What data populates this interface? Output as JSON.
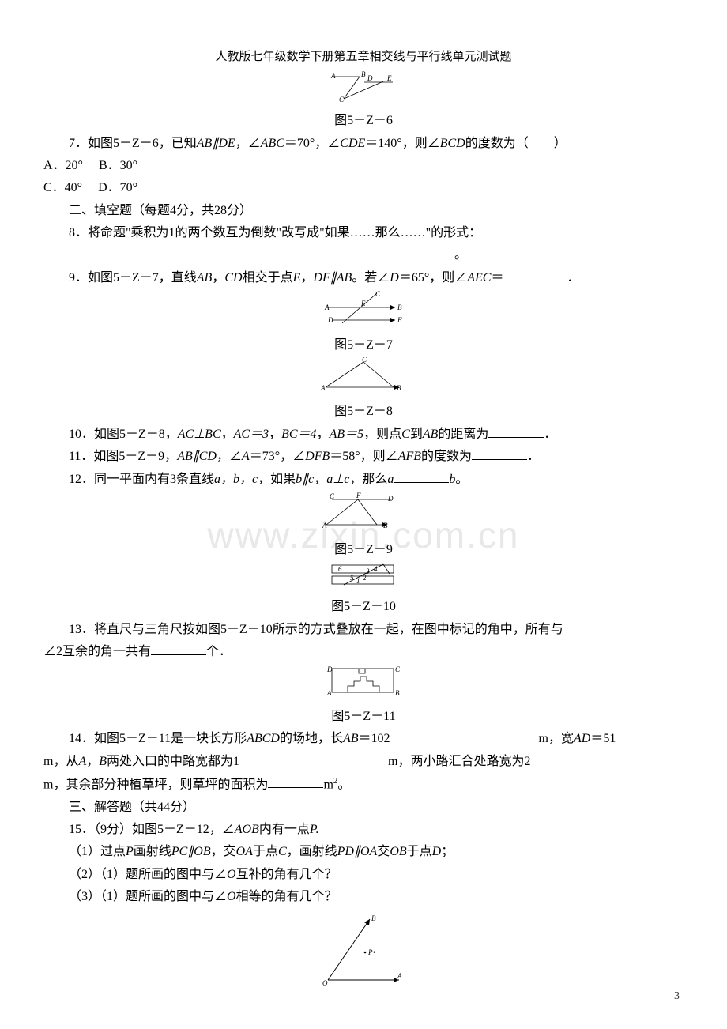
{
  "header": "人教版七年级数学下册第五章相交线与平行线单元测试题",
  "watermark": "www.zixin.com.cn",
  "fig6": {
    "label": "图5－Z－6",
    "pts": {
      "A": "A",
      "B": "B",
      "C": "C",
      "D": "D",
      "E": "E"
    }
  },
  "q7": {
    "text_a": "7．如图5－Z－6，已知",
    "abde": "AB∥DE",
    "text_b": "，∠",
    "abc": "ABC",
    "text_c": "＝70°，∠",
    "cde": "CDE",
    "text_d": "＝140°，则∠",
    "bcd": "BCD",
    "text_e": "的度数为（　　）",
    "A": "A．20°",
    "B": "B．30°",
    "C": "C．40°",
    "D": "D．70°"
  },
  "sec2": "二、填空题（每题4分，共28分）",
  "q8": {
    "text": "8．将命题\"乘积为1的两个数互为倒数\"改写成\"如果……那么……\"的形式："
  },
  "q9": {
    "a": "9．如图5－Z－7，直线",
    "ab": "AB",
    "b": "，",
    "cd": "CD",
    "c": "相交于点",
    "e": "E",
    "d": "，",
    "df": "DF∥AB",
    "f": "。若∠",
    "dlab": "D",
    "g": "＝65°，则∠",
    "aec": "AEC",
    "h": "＝",
    "tail": "．"
  },
  "fig7": {
    "label": "图5－Z－7",
    "pts": {
      "A": "A",
      "B": "B",
      "C": "C",
      "D": "D",
      "E": "E",
      "F": "F"
    }
  },
  "fig8": {
    "label": "图5－Z－8",
    "pts": {
      "A": "A",
      "B": "B",
      "C": "C"
    }
  },
  "q10": {
    "a": "10．如图5－Z－8，",
    "ac": "AC⊥BC",
    "b": "，",
    "ac3": "AC＝3",
    "c": "，",
    "bc4": "BC＝4",
    "d": "，",
    "ab5": "AB＝5",
    "e": "，则点",
    "cpt": "C",
    "f": "到",
    "ab": "AB",
    "g": "的距离为",
    "tail": "．"
  },
  "q11": {
    "a": "11．如图5－Z－9，",
    "abcd": "AB∥CD",
    "b": "，∠",
    "Alab": "A",
    "c": "＝73°，∠",
    "dfb": "DFB",
    "d": "＝58°，则∠",
    "afb": "AFB",
    "e": "的度数为",
    "tail": "．"
  },
  "q12": {
    "a": "12．同一平面内有3条直线",
    "abc": "a，b，c",
    "b": "，如果",
    "bc": "b∥c",
    "c": "，",
    "ac": "a⊥c",
    "d": "，那么",
    "alab": "a",
    "blab": "b",
    "tail": "。"
  },
  "fig9": {
    "label": "图5－Z－9",
    "pts": {
      "A": "A",
      "B": "B",
      "C": "C",
      "D": "D",
      "F": "F"
    }
  },
  "fig10": {
    "label": "图5－Z－10",
    "nums": {
      "n1": "1",
      "n2": "2",
      "n3": "3",
      "n4": "4",
      "n5": "5",
      "n6": "6"
    }
  },
  "q13": {
    "a": "13．将直尺与三角尺按如图5－Z－10所示的方式叠放在一起，在图中标记的角中，所有与∠2互余的角一共有",
    "b": "个．"
  },
  "fig11": {
    "label": "图5－Z－11",
    "pts": {
      "A": "A",
      "B": "B",
      "C": "C",
      "D": "D"
    }
  },
  "q14": {
    "a": "14．如图5－Z－11是一块长方形",
    "abcd": "ABCD",
    "b": "的场地，长",
    "ab": "AB",
    "c": "＝102",
    "m1": "m，宽",
    "ad": "AD",
    "d": "＝51",
    "line2a": "m，从",
    "Apt": "A",
    "com": "，",
    "Bpt": "B",
    "line2b": "两处入口的中路宽都为1",
    "m2": "m，两小路汇合处路宽为2",
    "line3a": "m，其余部分种植草坪，则草坪的面积为",
    "m3": "m",
    "sq": "2",
    "tail": "。"
  },
  "sec3": "三、解答题（共44分）",
  "q15": {
    "head": "15．（9分）如图5－Z－12，∠",
    "aob": "AOB",
    "head2": "内有一点",
    "p": "P.",
    "p1a": "（1）过点",
    "Ppt": "P",
    "p1b": "画射线",
    "pc": "PC∥OB",
    "p1c": "，交",
    "oa": "OA",
    "p1d": "于点",
    "Cpt": "C",
    "p1e": "，画射线",
    "pd": "PD∥OA",
    "p1f": "交",
    "ob": "OB",
    "p1g": "于点",
    "Dpt": "D",
    "p1h": "；",
    "p2a": "（2）（1）题所画的图中与∠",
    "Olab": "O",
    "p2b": "互补的角有几个？",
    "p3a": "（3）（1）题所画的图中与∠",
    "p3b": "相等的角有几个？"
  },
  "fig12": {
    "pts": {
      "A": "A",
      "B": "B",
      "O": "O",
      "P": "P"
    }
  },
  "pagenum": "3",
  "colors": {
    "text": "#000000",
    "bg": "#ffffff",
    "wm": "#e8e8e8"
  }
}
